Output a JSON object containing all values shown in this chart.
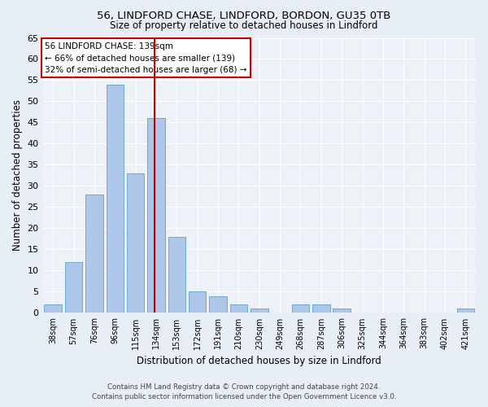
{
  "title1": "56, LINDFORD CHASE, LINDFORD, BORDON, GU35 0TB",
  "title2": "Size of property relative to detached houses in Lindford",
  "xlabel": "Distribution of detached houses by size in Lindford",
  "ylabel": "Number of detached properties",
  "categories": [
    "38sqm",
    "57sqm",
    "76sqm",
    "96sqm",
    "115sqm",
    "134sqm",
    "153sqm",
    "172sqm",
    "191sqm",
    "210sqm",
    "230sqm",
    "249sqm",
    "268sqm",
    "287sqm",
    "306sqm",
    "325sqm",
    "344sqm",
    "364sqm",
    "383sqm",
    "402sqm",
    "421sqm"
  ],
  "values": [
    2,
    12,
    28,
    54,
    33,
    46,
    18,
    5,
    4,
    2,
    1,
    0,
    2,
    2,
    1,
    0,
    0,
    0,
    0,
    0,
    1
  ],
  "bar_color": "#aec6e8",
  "bar_edge_color": "#6aaad4",
  "vline_x": 5,
  "vline_color": "#cc0000",
  "annotation_title": "56 LINDFORD CHASE: 139sqm",
  "annotation_line1": "← 66% of detached houses are smaller (139)",
  "annotation_line2": "32% of semi-detached houses are larger (68) →",
  "annotation_box_color": "#ffffff",
  "annotation_box_edge": "#cc0000",
  "footer1": "Contains HM Land Registry data © Crown copyright and database right 2024.",
  "footer2": "Contains public sector information licensed under the Open Government Licence v3.0.",
  "bg_color": "#e8eef5",
  "plot_bg_color": "#edf2f8",
  "ylim": [
    0,
    65
  ],
  "yticks": [
    0,
    5,
    10,
    15,
    20,
    25,
    30,
    35,
    40,
    45,
    50,
    55,
    60,
    65
  ]
}
